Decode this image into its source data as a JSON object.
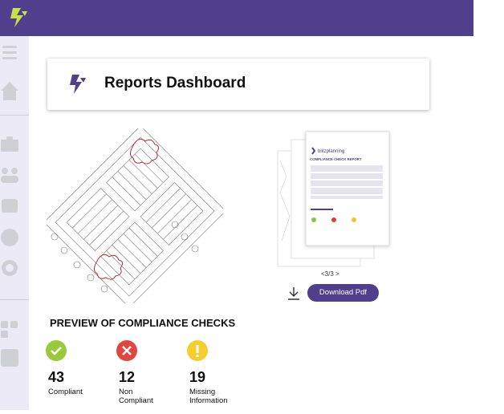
{
  "header": {
    "title": "Reports Dashboard"
  },
  "report_preview": {
    "brand": "blitzplanning",
    "heading": "COMPLIANCE CHECK REPORT",
    "pager": "<3/3 >",
    "download_button": "Download Pdf"
  },
  "compliance": {
    "title": "PREVIEW OF COMPLIANCE CHECKS",
    "items": [
      {
        "count": 43,
        "label": "Compliant"
      },
      {
        "count": 12,
        "label": "Non Compliant"
      },
      {
        "count": 19,
        "label": "Missing Information"
      }
    ]
  }
}
